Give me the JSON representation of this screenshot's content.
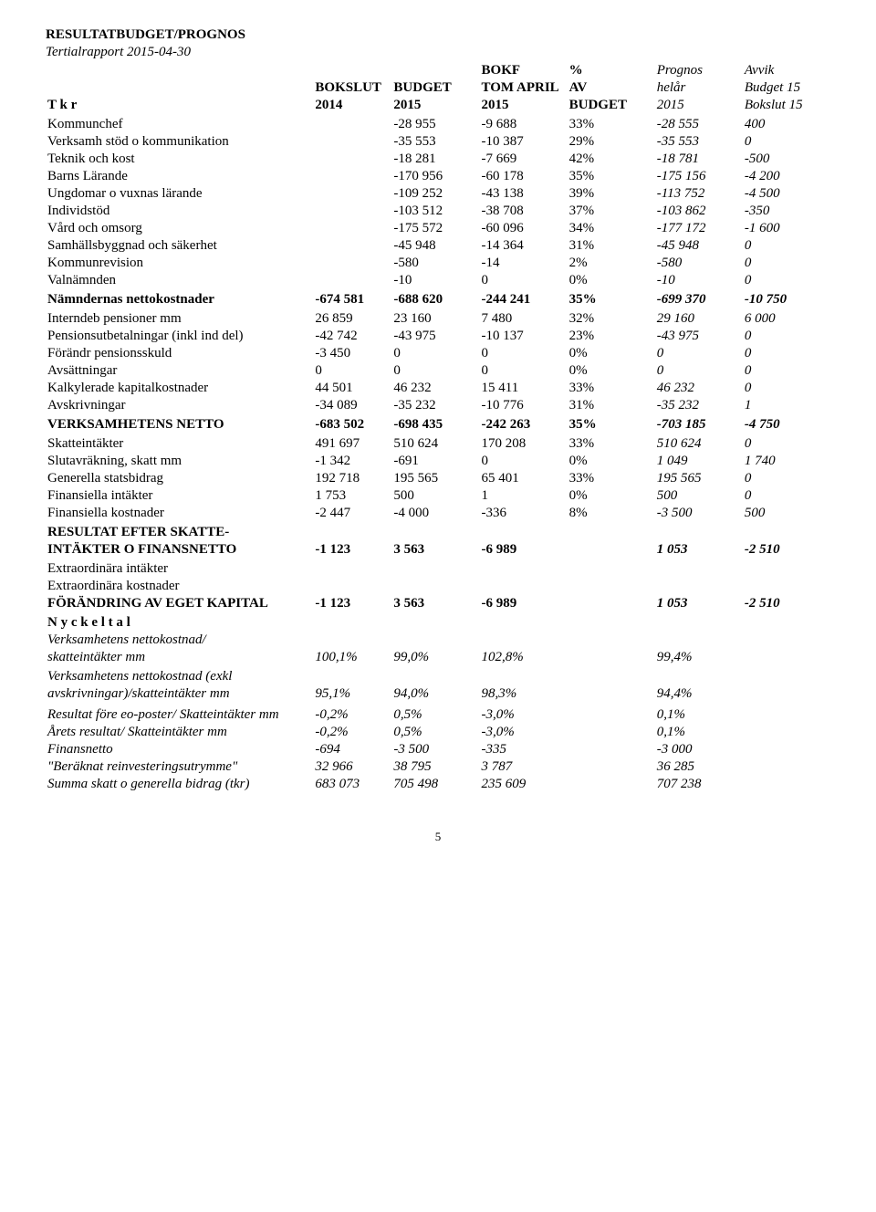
{
  "title": "RESULTATBUDGET/PROGNOS",
  "subtitle": "Tertialrapport 2015-04-30",
  "tkr": "T k r",
  "headers": {
    "l1": [
      "",
      "",
      "BOKF",
      "%",
      "Prognos",
      "Avvik"
    ],
    "l2": [
      "BOKSLUT",
      "BUDGET",
      "TOM APRIL",
      "AV",
      "helår",
      "Budget 15"
    ],
    "l3": [
      "2014",
      "2015",
      "2015",
      "BUDGET",
      "2015",
      "Bokslut 15"
    ]
  },
  "rows_a": [
    {
      "label": "Kommunchef",
      "v": [
        "-28 955",
        "-9 688",
        "33%",
        "-28 555",
        "400"
      ],
      "style": ""
    },
    {
      "label": "Verksamh stöd o kommunikation",
      "v": [
        "-35 553",
        "-10 387",
        "29%",
        "-35 553",
        "0"
      ],
      "style": ""
    },
    {
      "label": "Teknik och kost",
      "v": [
        "-18 281",
        "-7 669",
        "42%",
        "-18 781",
        "-500"
      ],
      "style": ""
    },
    {
      "label": "Barns Lärande",
      "v": [
        "-170 956",
        "-60 178",
        "35%",
        "-175 156",
        "-4 200"
      ],
      "style": ""
    },
    {
      "label": "Ungdomar o vuxnas lärande",
      "v": [
        "-109 252",
        "-43 138",
        "39%",
        "-113 752",
        "-4 500"
      ],
      "style": ""
    },
    {
      "label": "Individstöd",
      "v": [
        "-103 512",
        "-38 708",
        "37%",
        "-103 862",
        "-350"
      ],
      "style": ""
    },
    {
      "label": "Vård och omsorg",
      "v": [
        "-175 572",
        "-60 096",
        "34%",
        "-177 172",
        "-1 600"
      ],
      "style": ""
    },
    {
      "label": "Samhällsbyggnad och säkerhet",
      "v": [
        "-45 948",
        "-14 364",
        "31%",
        "-45 948",
        "0"
      ],
      "style": ""
    },
    {
      "label": "Kommunrevision",
      "v": [
        "-580",
        "-14",
        "2%",
        "-580",
        "0"
      ],
      "style": ""
    },
    {
      "label": "Valnämnden",
      "v": [
        "-10",
        "0",
        "0%",
        "-10",
        "0"
      ],
      "style": ""
    }
  ],
  "namndernas": {
    "label": "Nämndernas nettokostnader",
    "b1": "-674 581",
    "v": [
      "-688 620",
      "-244 241",
      "35%",
      "-699 370",
      "-10 750"
    ]
  },
  "rows_b": [
    {
      "label": "Interndeb pensioner mm",
      "b1": "26 859",
      "v": [
        "23 160",
        "7 480",
        "32%",
        "29 160",
        "6 000"
      ],
      "style": ""
    },
    {
      "label": "Pensionsutbetalningar (inkl ind del)",
      "b1": "-42 742",
      "v": [
        "-43 975",
        "-10 137",
        "23%",
        "-43 975",
        "0"
      ],
      "style": ""
    },
    {
      "label": "Förändr pensionsskuld",
      "b1": "-3 450",
      "v": [
        "0",
        "0",
        "0%",
        "0",
        "0"
      ],
      "style": ""
    },
    {
      "label": "Avsättningar",
      "b1": "0",
      "v": [
        "0",
        "0",
        "0%",
        "0",
        "0"
      ],
      "style": ""
    },
    {
      "label": "Kalkylerade kapitalkostnader",
      "b1": "44 501",
      "v": [
        "46 232",
        "15 411",
        "33%",
        "46 232",
        "0"
      ],
      "style": ""
    },
    {
      "label": "Avskrivningar",
      "b1": "-34 089",
      "v": [
        "-35 232",
        "-10 776",
        "31%",
        "-35 232",
        "1"
      ],
      "style": ""
    }
  ],
  "verksnetto": {
    "label": "VERKSAMHETENS NETTO",
    "b1": "-683 502",
    "v": [
      "-698 435",
      "-242 263",
      "35%",
      "-703 185",
      "-4 750"
    ]
  },
  "rows_c": [
    {
      "label": "Skatteintäkter",
      "b1": "491 697",
      "v": [
        "510 624",
        "170 208",
        "33%",
        "510 624",
        "0"
      ],
      "style": ""
    },
    {
      "label": "Slutavräkning, skatt mm",
      "b1": "-1 342",
      "v": [
        "-691",
        "0",
        "0%",
        "1 049",
        "1 740"
      ],
      "style": ""
    },
    {
      "label": "Generella statsbidrag",
      "b1": "192 718",
      "v": [
        "195 565",
        "65 401",
        "33%",
        "195 565",
        "0"
      ],
      "style": ""
    },
    {
      "label": "Finansiella intäkter",
      "b1": "1 753",
      "v": [
        "500",
        "1",
        "0%",
        "500",
        "0"
      ],
      "style": ""
    },
    {
      "label": "Finansiella kostnader",
      "b1": "-2 447",
      "v": [
        "-4 000",
        "-336",
        "8%",
        "-3 500",
        "500"
      ],
      "style": ""
    }
  ],
  "result_header1": "RESULTAT EFTER SKATTE-",
  "result_header2": "INTÄKTER O FINANSNETTO",
  "result_row": {
    "b1": "-1 123",
    "v": [
      "3 563",
      "-6 989",
      "",
      "1 053",
      "-2 510"
    ]
  },
  "eo_int": "Extraordinära intäkter",
  "eo_kost": "Extraordinära kostnader",
  "forandring": {
    "label": "FÖRÄNDRING AV EGET KAPITAL",
    "b1": "-1 123",
    "v": [
      "3 563",
      "-6 989",
      "",
      "1 053",
      "-2 510"
    ]
  },
  "nyckeltal": "N y c k e l t a l",
  "keys": [
    {
      "l1": "Verksamhetens nettokostnad/",
      "l2": "skatteintäkter mm",
      "b1": "100,1%",
      "v": [
        "99,0%",
        "102,8%",
        "",
        "99,4%",
        ""
      ],
      "style": "italic"
    },
    {
      "l1": "Verksamhetens nettokostnad (exkl",
      "l2": "avskrivningar)/skatteintäkter mm",
      "b1": "95,1%",
      "v": [
        "94,0%",
        "98,3%",
        "",
        "94,4%",
        ""
      ],
      "style": "italic"
    }
  ],
  "tail": [
    {
      "label": "Resultat före eo-poster/ Skatteintäkter mm",
      "b1": "-0,2%",
      "v": [
        "0,5%",
        "-3,0%",
        "",
        "0,1%",
        ""
      ],
      "style": "italic"
    },
    {
      "label": "Årets resultat/ Skatteintäkter mm",
      "b1": "-0,2%",
      "v": [
        "0,5%",
        "-3,0%",
        "",
        "0,1%",
        ""
      ],
      "style": "italic"
    },
    {
      "label": "Finansnetto",
      "b1": "-694",
      "v": [
        "-3 500",
        "-335",
        "",
        "-3 000",
        ""
      ],
      "style": "italic"
    },
    {
      "label": "\"Beräknat reinvesteringsutrymme\"",
      "b1": "32 966",
      "v": [
        "38 795",
        "3 787",
        "",
        "36 285",
        ""
      ],
      "style": "italic"
    },
    {
      "label": "Summa skatt o generella bidrag (tkr)",
      "b1": "683 073",
      "v": [
        "705 498",
        "235 609",
        "",
        "707 238",
        ""
      ],
      "style": "italic"
    }
  ],
  "page_num": "5"
}
